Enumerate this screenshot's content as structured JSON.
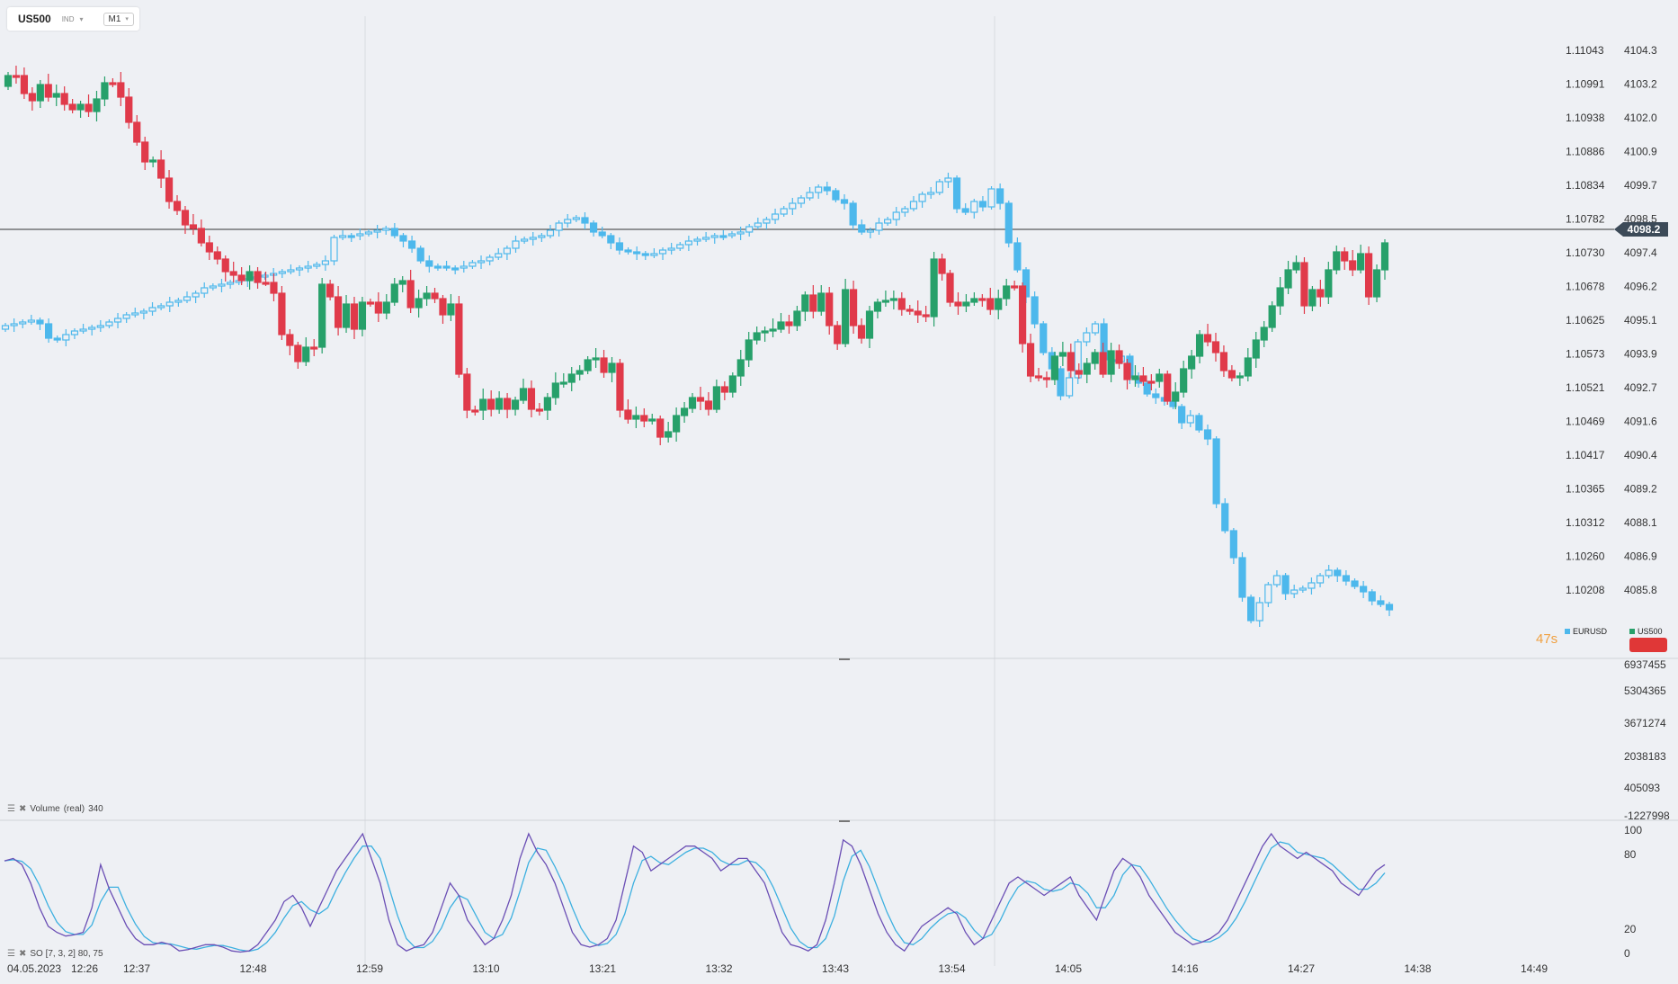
{
  "toolbar": {
    "symbol": "US500",
    "type_badge": "IND",
    "timeframe": "M1"
  },
  "price_axis": {
    "eurusd_ticks": [
      "1.11043",
      "1.10991",
      "1.10938",
      "1.10886",
      "1.10834",
      "1.10782",
      "1.10730",
      "1.10678",
      "1.10625",
      "1.10573",
      "1.10521",
      "1.10469",
      "1.10417",
      "1.10365",
      "1.10312",
      "1.10260",
      "1.10208"
    ],
    "us500_ticks": [
      "4104.3",
      "4103.2",
      "4102.0",
      "4100.9",
      "4099.7",
      "4098.5",
      "4097.4",
      "4096.2",
      "4095.1",
      "4093.9",
      "4092.7",
      "4091.6",
      "4090.4",
      "4089.2",
      "4088.1",
      "4086.9",
      "4085.8"
    ],
    "current_price": "4098.2"
  },
  "volume_axis": {
    "ticks": [
      "6937455",
      "5304365",
      "3671274",
      "2038183",
      "405093",
      "-1227998"
    ]
  },
  "stoch_axis": {
    "ticks": [
      "100",
      "80",
      "20",
      "0"
    ]
  },
  "time_axis": {
    "date": "04.05.2023",
    "ticks": [
      "12:26",
      "12:37",
      "12:48",
      "12:59",
      "13:10",
      "13:21",
      "13:32",
      "13:43",
      "13:54",
      "14:05",
      "14:16",
      "14:27",
      "14:38",
      "14:49"
    ]
  },
  "legend": {
    "series_a": "EURUSD",
    "series_b": "US500",
    "color_a": "#4db8ec",
    "color_b": "#27a06a"
  },
  "countdown": "47s",
  "volume_panel": {
    "title": "Volume",
    "mode": "(real)",
    "value": "340"
  },
  "stoch_panel": {
    "title": "SO [7, 3, 2] 80, 75"
  },
  "colors": {
    "up": "#27a06a",
    "down": "#e03a4a",
    "eurusd": "#4db8ec",
    "stoch_k": "#6b4fb5",
    "stoch_d": "#3db0e0",
    "countdown": "#f0a040"
  }
}
